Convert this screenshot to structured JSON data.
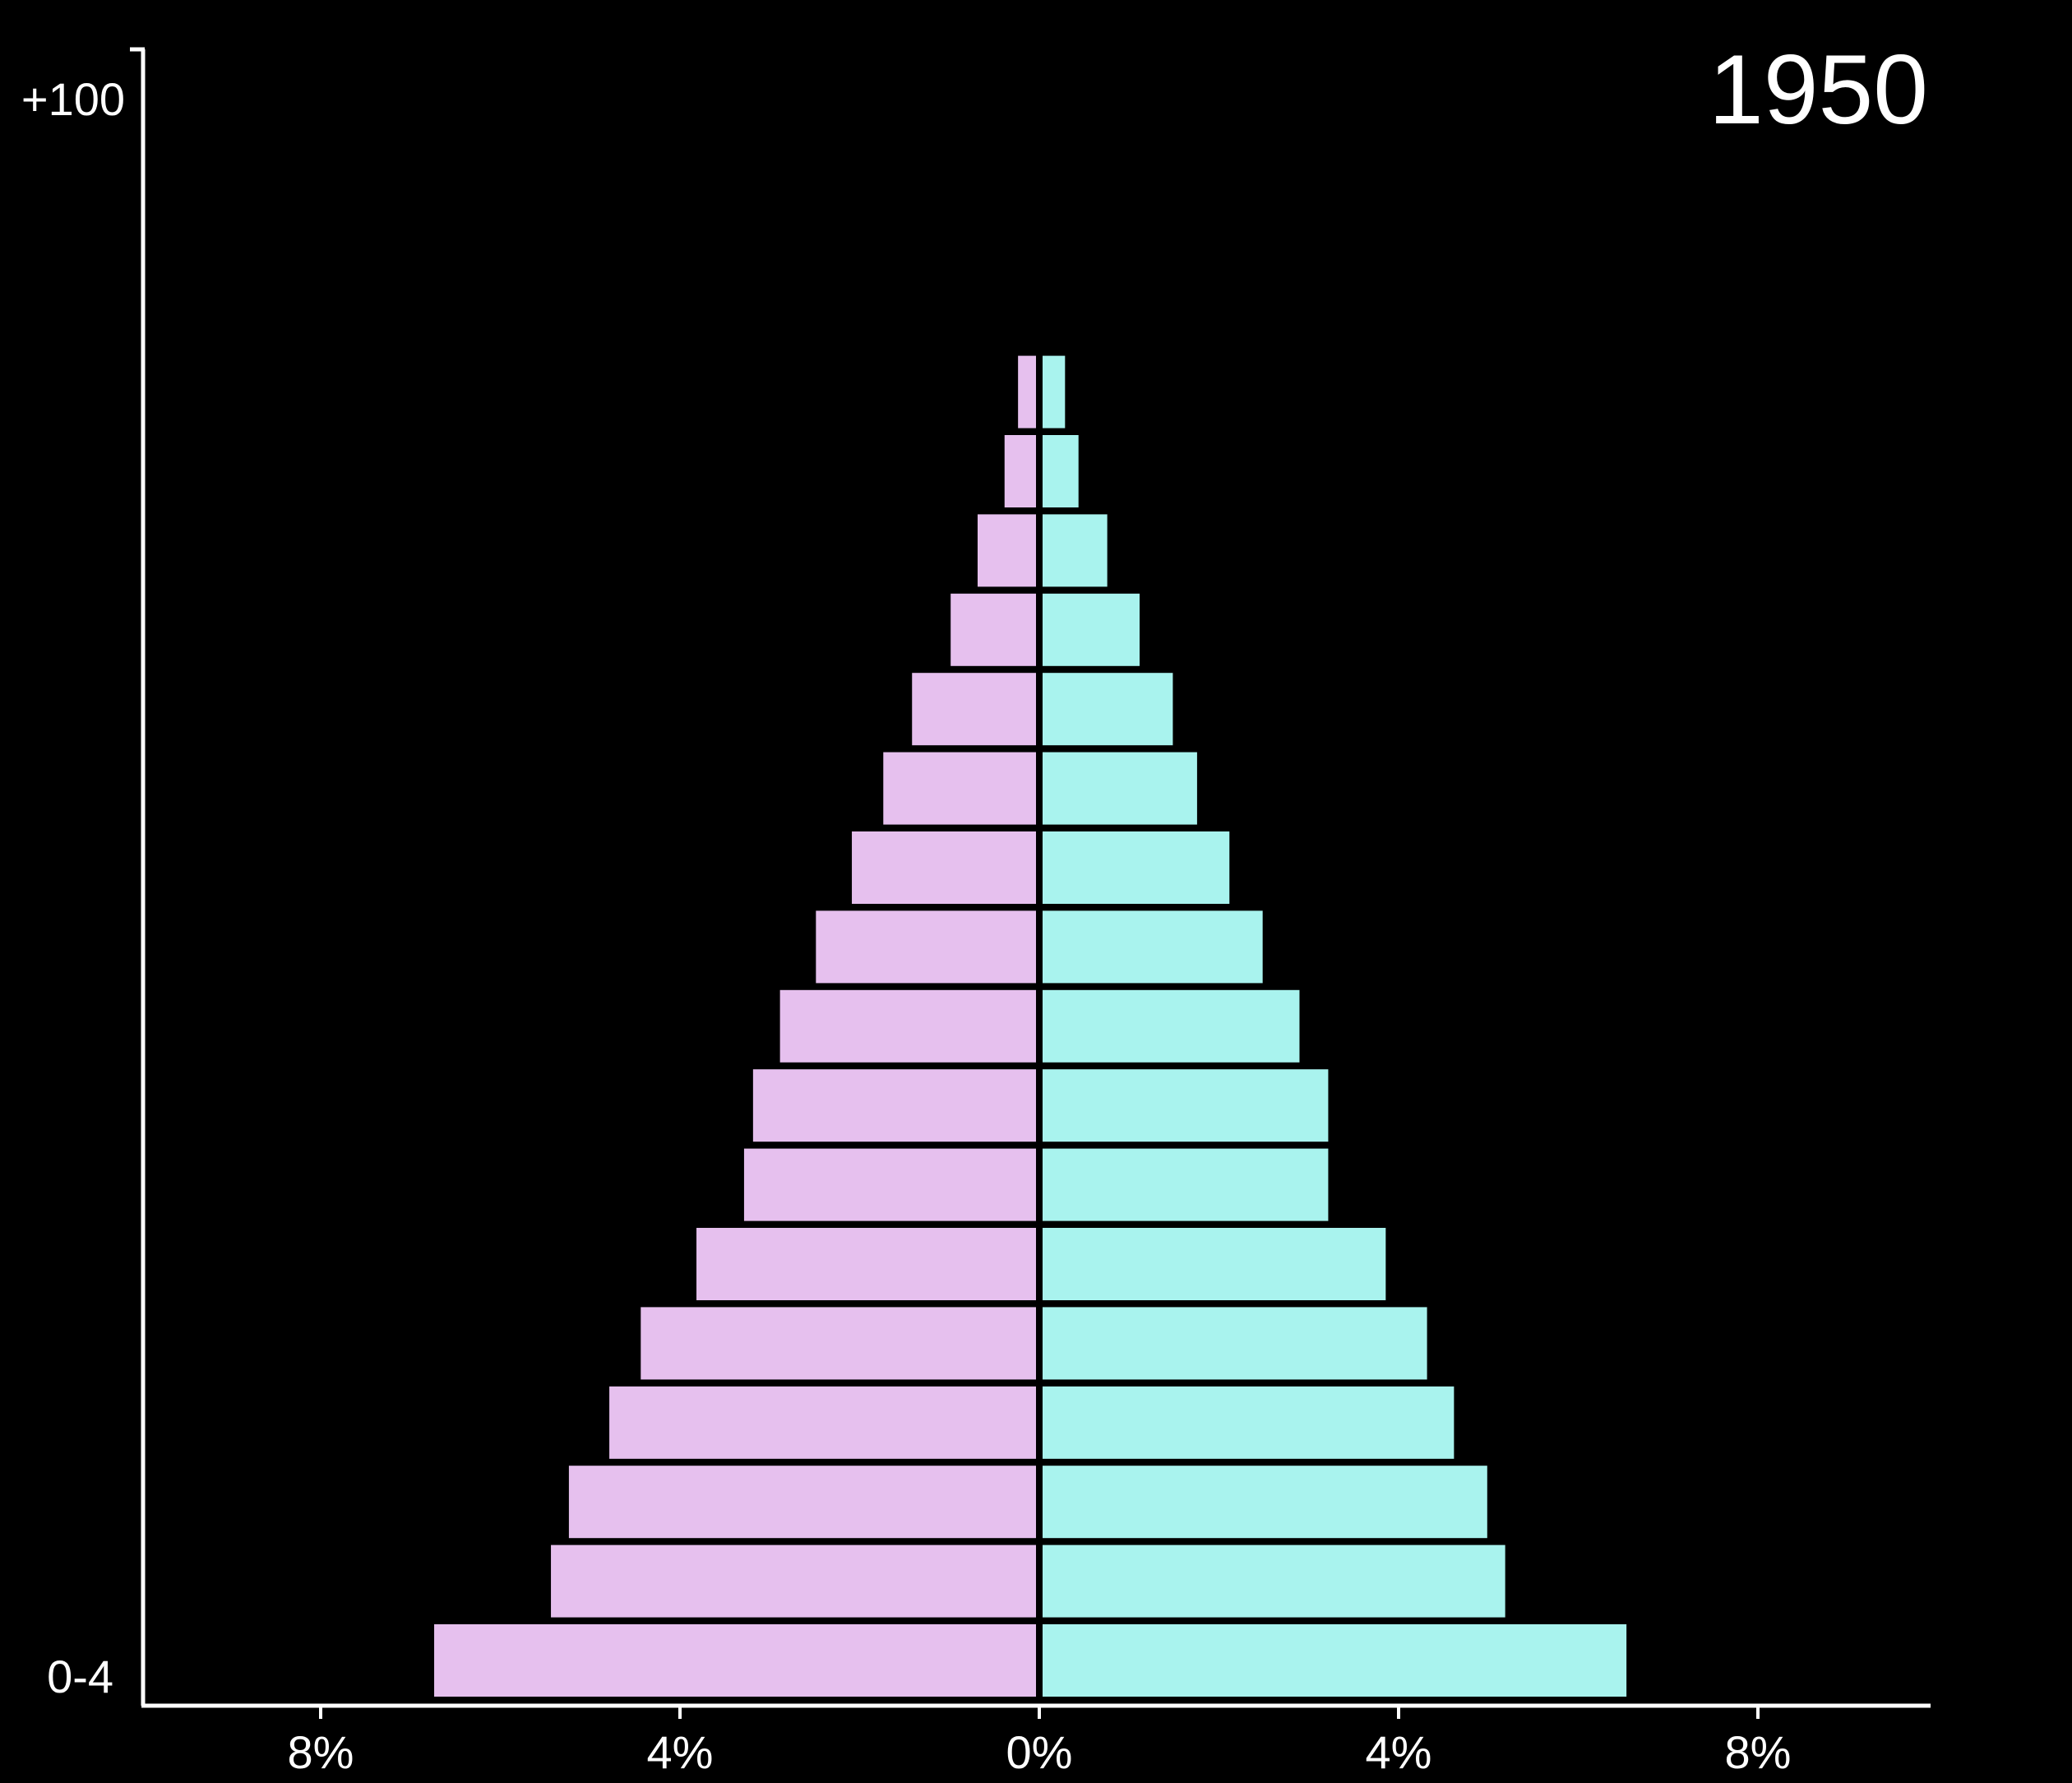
{
  "chart_data": {
    "type": "bar",
    "title": "1950",
    "orientation": "horizontal-population-pyramid",
    "y_tick_labels": [
      "0-4",
      "+100"
    ],
    "x_tick_labels": [
      "8%",
      "4%",
      "0%",
      "4%",
      "8%"
    ],
    "xlim": [
      -10,
      10
    ],
    "grid": false,
    "legend": "none",
    "colors": {
      "background": "#000000",
      "left": "#e6c0ee",
      "right": "#a9f3ee",
      "axis": "#ffffff"
    },
    "bars": [
      {
        "left": 6.7,
        "right": 6.5
      },
      {
        "left": 5.4,
        "right": 5.15
      },
      {
        "left": 5.2,
        "right": 4.95
      },
      {
        "left": 4.75,
        "right": 4.58
      },
      {
        "left": 4.4,
        "right": 4.28
      },
      {
        "left": 3.78,
        "right": 3.82
      },
      {
        "left": 3.25,
        "right": 3.18
      },
      {
        "left": 3.15,
        "right": 3.18
      },
      {
        "left": 2.85,
        "right": 2.86
      },
      {
        "left": 2.45,
        "right": 2.45
      },
      {
        "left": 2.05,
        "right": 2.08
      },
      {
        "left": 1.7,
        "right": 1.72
      },
      {
        "left": 1.38,
        "right": 1.45
      },
      {
        "left": 0.95,
        "right": 1.08
      },
      {
        "left": 0.65,
        "right": 0.72
      },
      {
        "left": 0.35,
        "right": 0.4
      },
      {
        "left": 0.2,
        "right": 0.25
      }
    ]
  }
}
